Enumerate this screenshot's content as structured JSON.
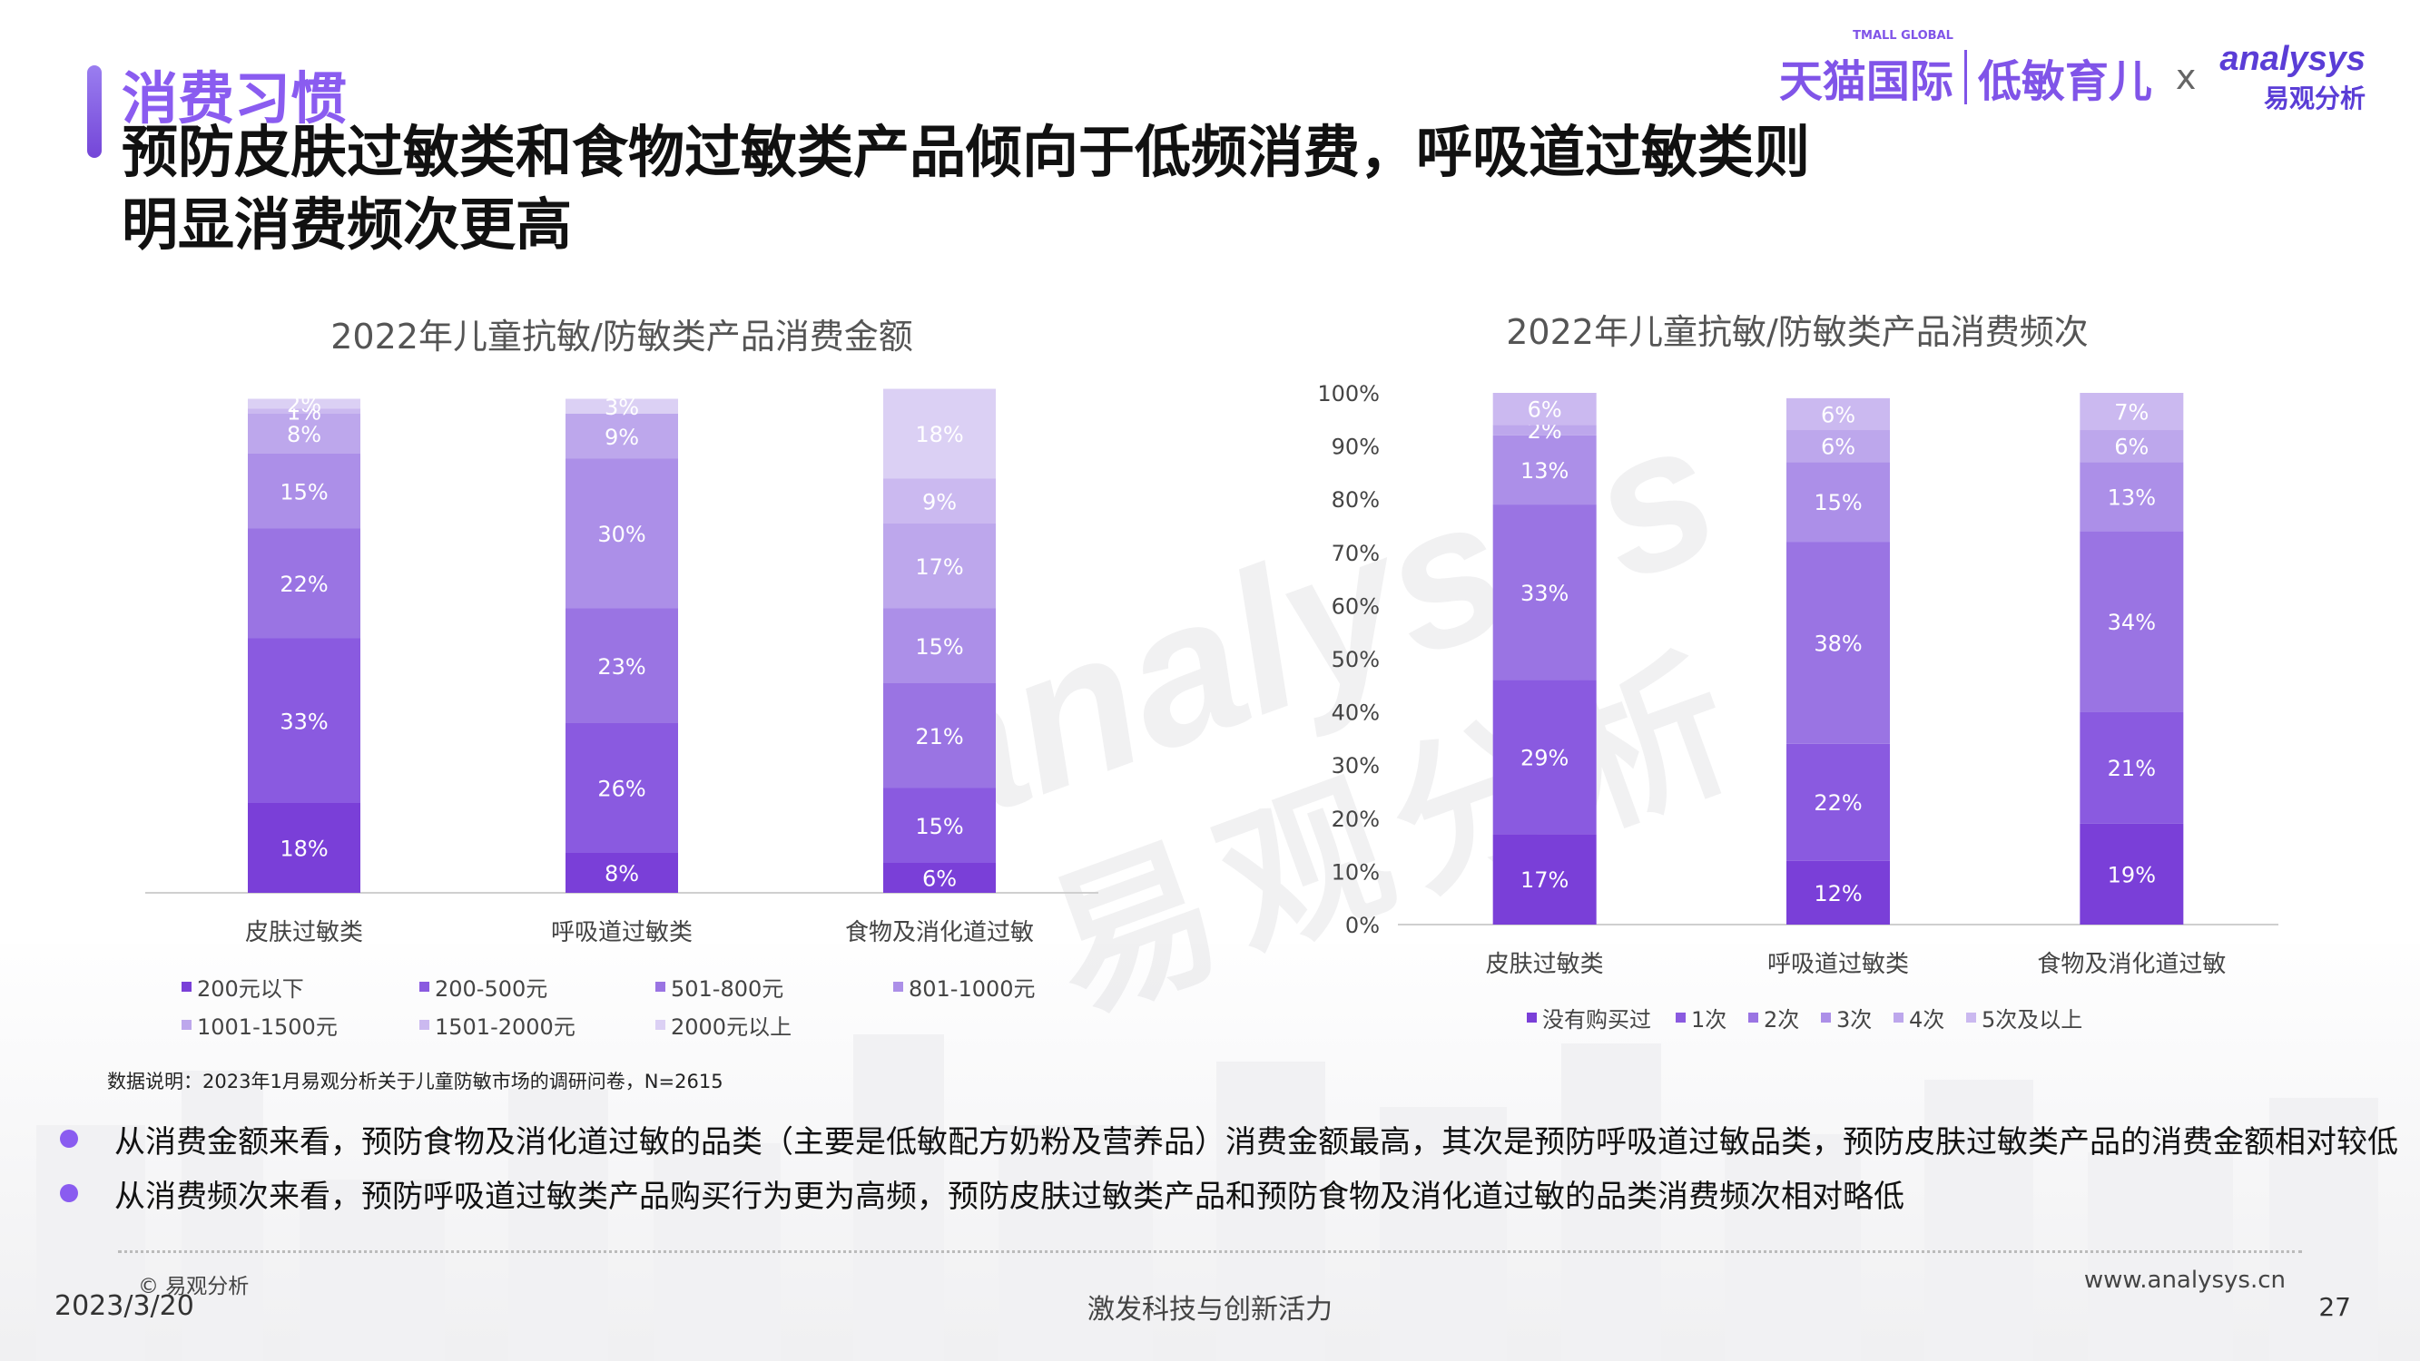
{
  "header": {
    "section_title": "消费习惯",
    "main_title": "预防皮肤过敏类和食物过敏类产品倾向于低频消费，呼吸道过敏类则明显消费频次更高"
  },
  "logos": {
    "tmall_small": "TMALL GLOBAL",
    "tmall": "天猫国际",
    "lowallergy": "低敏育儿",
    "x": "x",
    "analysys_en": "analysys",
    "analysys_cn": "易观分析"
  },
  "watermark": {
    "en": "analysys",
    "cn": "易观分析"
  },
  "colors": [
    "#7a3fd8",
    "#8a5ae0",
    "#9a74e3",
    "#ac8fe8",
    "#bda7ec",
    "#cbb9f0",
    "#dbd0f4"
  ],
  "chart_data": [
    {
      "type": "bar",
      "stacked": true,
      "title": "2022年儿童抗敏/防敏类产品消费金额",
      "categories": [
        "皮肤过敏类",
        "呼吸道过敏类",
        "食物及消化道过敏"
      ],
      "series": [
        {
          "name": "200元以下",
          "values": [
            18,
            8,
            6
          ]
        },
        {
          "name": "200-500元",
          "values": [
            33,
            26,
            15
          ]
        },
        {
          "name": "501-800元",
          "values": [
            22,
            23,
            21
          ]
        },
        {
          "name": "801-1000元",
          "values": [
            15,
            30,
            15
          ]
        },
        {
          "name": "1001-1500元",
          "values": [
            8,
            9,
            17
          ]
        },
        {
          "name": "1501-2000元",
          "values": [
            1,
            0,
            9
          ]
        },
        {
          "name": "2000元以上",
          "values": [
            2,
            3,
            18
          ]
        }
      ],
      "ylim": [
        0,
        100
      ],
      "show_y_axis": false
    },
    {
      "type": "bar",
      "stacked": true,
      "title": "2022年儿童抗敏/防敏类产品消费频次",
      "categories": [
        "皮肤过敏类",
        "呼吸道过敏类",
        "食物及消化道过敏"
      ],
      "series": [
        {
          "name": "没有购买过",
          "values": [
            17,
            12,
            19
          ]
        },
        {
          "name": "1次",
          "values": [
            29,
            22,
            21
          ]
        },
        {
          "name": "2次",
          "values": [
            33,
            38,
            34
          ]
        },
        {
          "name": "3次",
          "values": [
            13,
            15,
            13
          ]
        },
        {
          "name": "4次",
          "values": [
            2,
            6,
            6
          ]
        },
        {
          "name": "5次及以上",
          "values": [
            6,
            6,
            7
          ]
        }
      ],
      "ylim": [
        0,
        100
      ],
      "yticks": [
        "0%",
        "10%",
        "20%",
        "30%",
        "40%",
        "50%",
        "60%",
        "70%",
        "80%",
        "90%",
        "100%"
      ],
      "show_y_axis": true
    }
  ],
  "footer": {
    "source_note": "数据说明：2023年1月易观分析关于儿童防敏市场的调研问卷，N=2615",
    "bullets": [
      "从消费金额来看，预防食物及消化道过敏的品类（主要是低敏配方奶粉及营养品）消费金额最高，其次是预防呼吸道过敏品类，预防皮肤过敏类产品的消费金额相对较低",
      "从消费频次来看，预防呼吸道过敏类产品购买行为更为高频，预防皮肤过敏类产品和预防食物及消化道过敏的品类消费频次相对略低"
    ],
    "copyright": "© 易观分析",
    "date": "2023/3/20",
    "slogan": "激发科技与创新活力",
    "website": "www.analysys.cn",
    "page": "27"
  }
}
